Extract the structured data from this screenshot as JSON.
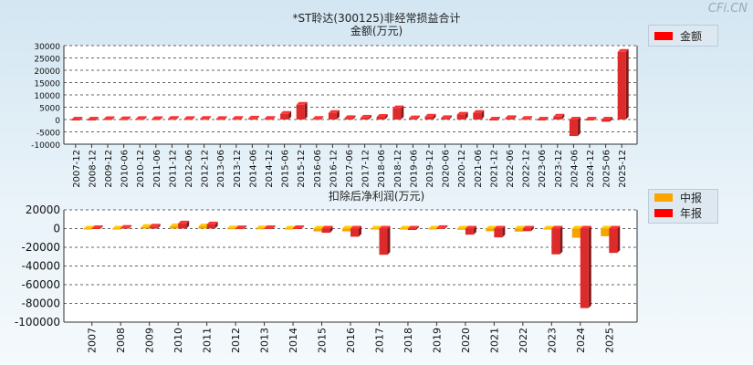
{
  "page": {
    "title": "*ST聆达(300125)非经常损益合计",
    "watermark": "CFi.CN"
  },
  "chart_data": [
    {
      "type": "bar",
      "title": "金额(万元)",
      "categories": [
        "2007-12",
        "2008-12",
        "2009-12",
        "2010-06",
        "2010-12",
        "2011-06",
        "2011-12",
        "2012-06",
        "2012-12",
        "2013-06",
        "2013-12",
        "2014-06",
        "2014-12",
        "2015-06",
        "2015-12",
        "2016-06",
        "2016-12",
        "2017-06",
        "2017-12",
        "2018-06",
        "2018-12",
        "2019-06",
        "2019-12",
        "2020-06",
        "2020-12",
        "2021-06",
        "2021-12",
        "2022-06",
        "2022-12",
        "2023-06",
        "2023-12",
        "2024-06",
        "2024-12",
        "2025-06",
        "2025-12"
      ],
      "series": [
        {
          "name": "金额",
          "color": "#dd2a2a",
          "values": [
            -200,
            -300,
            200,
            150,
            250,
            200,
            300,
            250,
            300,
            250,
            300,
            400,
            300,
            2300,
            6000,
            300,
            2700,
            600,
            800,
            1100,
            4600,
            500,
            1200,
            600,
            2000,
            2700,
            -200,
            600,
            300,
            -100,
            1200,
            -6700,
            -50,
            -900,
            27500
          ]
        }
      ],
      "ylim": [
        -10000,
        30000
      ],
      "yticks": [
        -10000,
        -5000,
        0,
        5000,
        10000,
        15000,
        20000,
        25000,
        30000
      ]
    },
    {
      "type": "bar",
      "title": "扣除后净利润(万元)",
      "categories": [
        "2007",
        "2008",
        "2009",
        "2010",
        "2011",
        "2012",
        "2013",
        "2014",
        "2015",
        "2016",
        "2017",
        "2018",
        "2019",
        "2020",
        "2021",
        "2022",
        "2023",
        "2024",
        "2025"
      ],
      "series": [
        {
          "name": "中报",
          "color": "#f5a300",
          "values": [
            -500,
            -200,
            1800,
            2600,
            2500,
            300,
            200,
            -300,
            -3000,
            -3000,
            -600,
            -800,
            -300,
            -1200,
            -2800,
            -3200,
            0,
            -9800,
            -8200
          ]
        },
        {
          "name": "年报",
          "color": "#dd2a2a",
          "values": [
            500,
            900,
            2200,
            5500,
            4500,
            400,
            500,
            500,
            -4500,
            -8700,
            -28000,
            -1500,
            600,
            -6500,
            -9400,
            -2800,
            -27500,
            -85000,
            -26000
          ]
        }
      ],
      "ylim": [
        -100000,
        20000
      ],
      "yticks": [
        -100000,
        -80000,
        -60000,
        -40000,
        -20000,
        0,
        20000
      ]
    }
  ]
}
